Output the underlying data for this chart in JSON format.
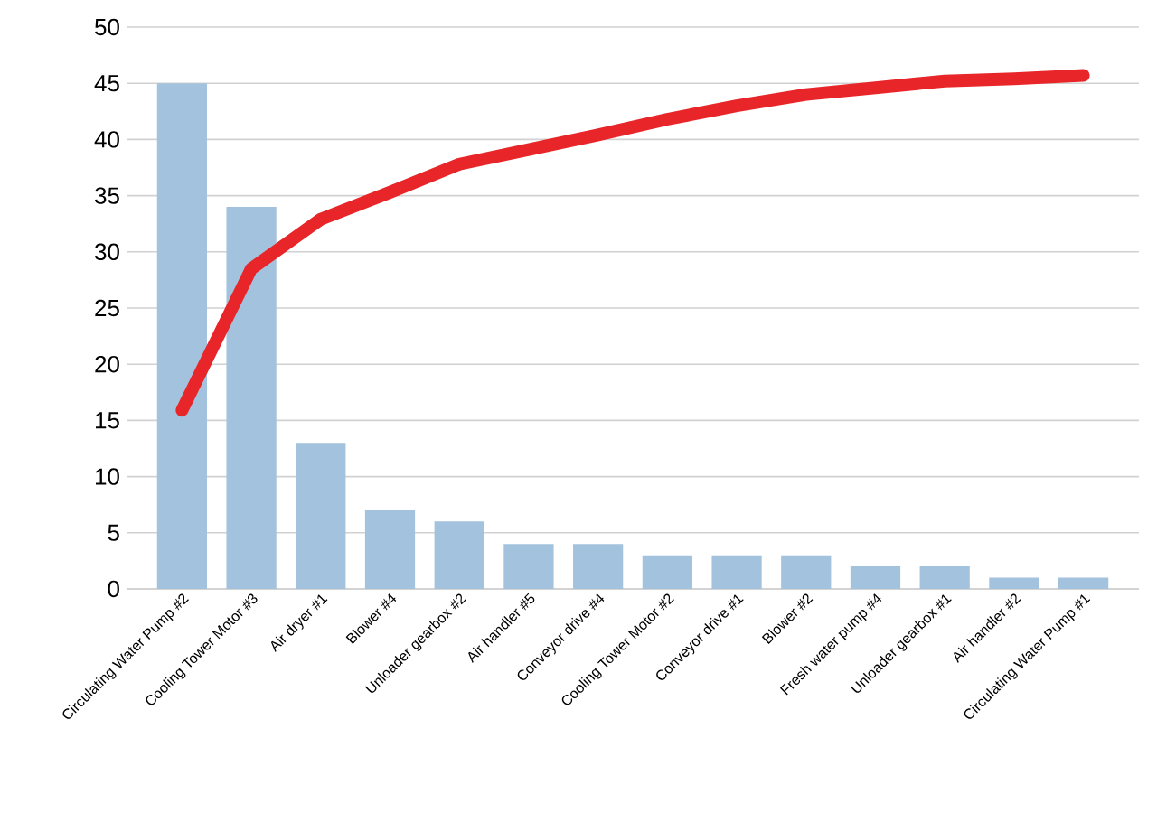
{
  "chart_data": {
    "type": "bar",
    "categories": [
      "Circulating Water Pump #2",
      "Cooling Tower Motor #3",
      "Air dryer #1",
      "Blower #4",
      "Unloader gearbox #2",
      "Air handler #5",
      "Conveyor drive #4",
      "Cooling Tower Motor #2",
      "Conveyor drive #1",
      "Blower #2",
      "Fresh water pump #4",
      "Unloader gearbox #1",
      "Air handler #2",
      "Circulating Water Pump #1"
    ],
    "series": [
      {
        "color": "#a2c2dd",
        "values": [
          45,
          34,
          13,
          7,
          6,
          4,
          4,
          3,
          3,
          3,
          2,
          2,
          1,
          1
        ]
      },
      {
        "type": "line",
        "color": "#e8262a",
        "values": [
          15.9,
          28.5,
          32.9,
          35.3,
          37.8,
          39.1,
          40.4,
          41.8,
          43,
          44,
          44.6,
          45.2,
          45.4,
          45.7
        ]
      }
    ],
    "ylim": [
      0,
      50
    ],
    "yticks": [
      0,
      5,
      10,
      15,
      20,
      25,
      30,
      35,
      40,
      45,
      50
    ],
    "grid": "y"
  }
}
